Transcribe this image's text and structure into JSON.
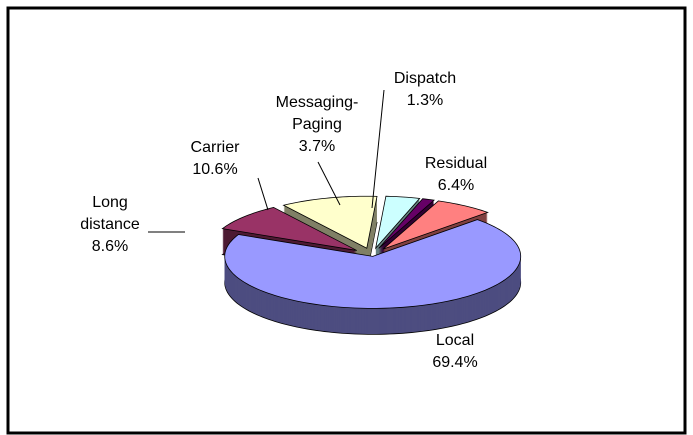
{
  "chart_data": {
    "type": "pie3d",
    "categories": [
      "Local",
      "Long distance",
      "Carrier",
      "Messaging-Paging",
      "Dispatch",
      "Residual"
    ],
    "values": [
      69.4,
      8.6,
      10.6,
      3.7,
      1.3,
      6.4
    ],
    "value_labels": [
      "69.4%",
      "8.6%",
      "10.6%",
      "3.7%",
      "1.3%",
      "6.4%"
    ],
    "colors": [
      "#9999ff",
      "#993366",
      "#ffffcc",
      "#ccffff",
      "#660066",
      "#ff8080"
    ]
  }
}
